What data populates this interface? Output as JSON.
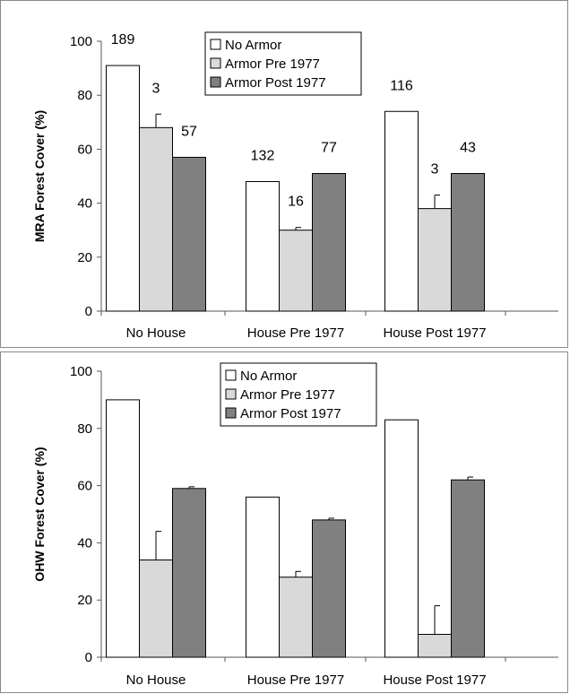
{
  "chart_data": [
    {
      "type": "bar",
      "ylabel": "MRA Forest Cover (%)",
      "ylim": [
        0,
        100
      ],
      "yticks": [
        0,
        20,
        40,
        60,
        80,
        100
      ],
      "categories": [
        "No House",
        "House Pre 1977",
        "House Post 1977"
      ],
      "legend_position": "top-center",
      "series": [
        {
          "name": "No Armor",
          "color": "#ffffff",
          "values": [
            91,
            48,
            74
          ],
          "errors": [
            0,
            0,
            0
          ],
          "labels": [
            "189",
            "132",
            "116"
          ]
        },
        {
          "name": "Armor Pre 1977",
          "color": "#d9d9d9",
          "values": [
            68,
            30,
            38
          ],
          "errors": [
            5,
            1,
            5
          ],
          "labels": [
            "3",
            "16",
            "3"
          ]
        },
        {
          "name": "Armor Post 1977",
          "color": "#808080",
          "values": [
            57,
            51,
            51
          ],
          "errors": [
            0,
            0,
            0
          ],
          "labels": [
            "57",
            "77",
            "43"
          ]
        }
      ]
    },
    {
      "type": "bar",
      "ylabel": "OHW Forest Cover (%)",
      "ylim": [
        0,
        100
      ],
      "yticks": [
        0,
        20,
        40,
        60,
        80,
        100
      ],
      "categories": [
        "No House",
        "House Pre 1977",
        "House Post 1977"
      ],
      "legend_position": "top-center",
      "series": [
        {
          "name": "No Armor",
          "color": "#ffffff",
          "values": [
            90,
            56,
            83
          ],
          "errors": [
            0,
            0,
            0
          ]
        },
        {
          "name": "Armor Pre 1977",
          "color": "#d9d9d9",
          "values": [
            34,
            28,
            8
          ],
          "errors": [
            10,
            2,
            10
          ]
        },
        {
          "name": "Armor Post 1977",
          "color": "#808080",
          "values": [
            59,
            48,
            62
          ],
          "errors": [
            0.6,
            0.6,
            1
          ]
        }
      ]
    }
  ]
}
